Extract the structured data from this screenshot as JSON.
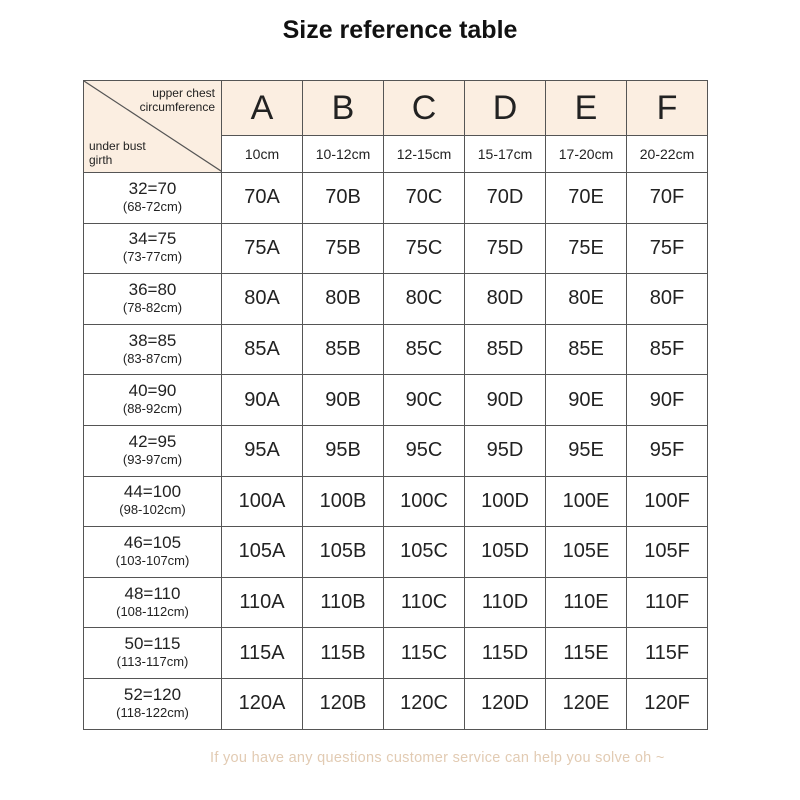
{
  "title": "Size reference table",
  "header": {
    "upper_label": "upper chest circumference",
    "under_label": "under bust girth",
    "cups": [
      {
        "letter": "A",
        "range": "10cm"
      },
      {
        "letter": "B",
        "range": "10-12cm"
      },
      {
        "letter": "C",
        "range": "12-15cm"
      },
      {
        "letter": "D",
        "range": "15-17cm"
      },
      {
        "letter": "E",
        "range": "17-20cm"
      },
      {
        "letter": "F",
        "range": "20-22cm"
      }
    ]
  },
  "rows": [
    {
      "band": "32=70",
      "range": "(68-72cm)",
      "sizes": [
        "70A",
        "70B",
        "70C",
        "70D",
        "70E",
        "70F"
      ]
    },
    {
      "band": "34=75",
      "range": "(73-77cm)",
      "sizes": [
        "75A",
        "75B",
        "75C",
        "75D",
        "75E",
        "75F"
      ]
    },
    {
      "band": "36=80",
      "range": "(78-82cm)",
      "sizes": [
        "80A",
        "80B",
        "80C",
        "80D",
        "80E",
        "80F"
      ]
    },
    {
      "band": "38=85",
      "range": "(83-87cm)",
      "sizes": [
        "85A",
        "85B",
        "85C",
        "85D",
        "85E",
        "85F"
      ]
    },
    {
      "band": "40=90",
      "range": "(88-92cm)",
      "sizes": [
        "90A",
        "90B",
        "90C",
        "90D",
        "90E",
        "90F"
      ]
    },
    {
      "band": "42=95",
      "range": "(93-97cm)",
      "sizes": [
        "95A",
        "95B",
        "95C",
        "95D",
        "95E",
        "95F"
      ]
    },
    {
      "band": "44=100",
      "range": "(98-102cm)",
      "sizes": [
        "100A",
        "100B",
        "100C",
        "100D",
        "100E",
        "100F"
      ]
    },
    {
      "band": "46=105",
      "range": "(103-107cm)",
      "sizes": [
        "105A",
        "105B",
        "105C",
        "105D",
        "105E",
        "105F"
      ]
    },
    {
      "band": "48=110",
      "range": "(108-112cm)",
      "sizes": [
        "110A",
        "110B",
        "110C",
        "110D",
        "110E",
        "110F"
      ]
    },
    {
      "band": "50=115",
      "range": "(113-117cm)",
      "sizes": [
        "115A",
        "115B",
        "115C",
        "115D",
        "115E",
        "115F"
      ]
    },
    {
      "band": "52=120",
      "range": "(118-122cm)",
      "sizes": [
        "120A",
        "120B",
        "120C",
        "120D",
        "120E",
        "120F"
      ]
    }
  ],
  "footer": "If you have any questions customer service can help you solve oh ~",
  "colors": {
    "header_bg": "#fbeee1",
    "footer_text": "#e2cbb3"
  }
}
